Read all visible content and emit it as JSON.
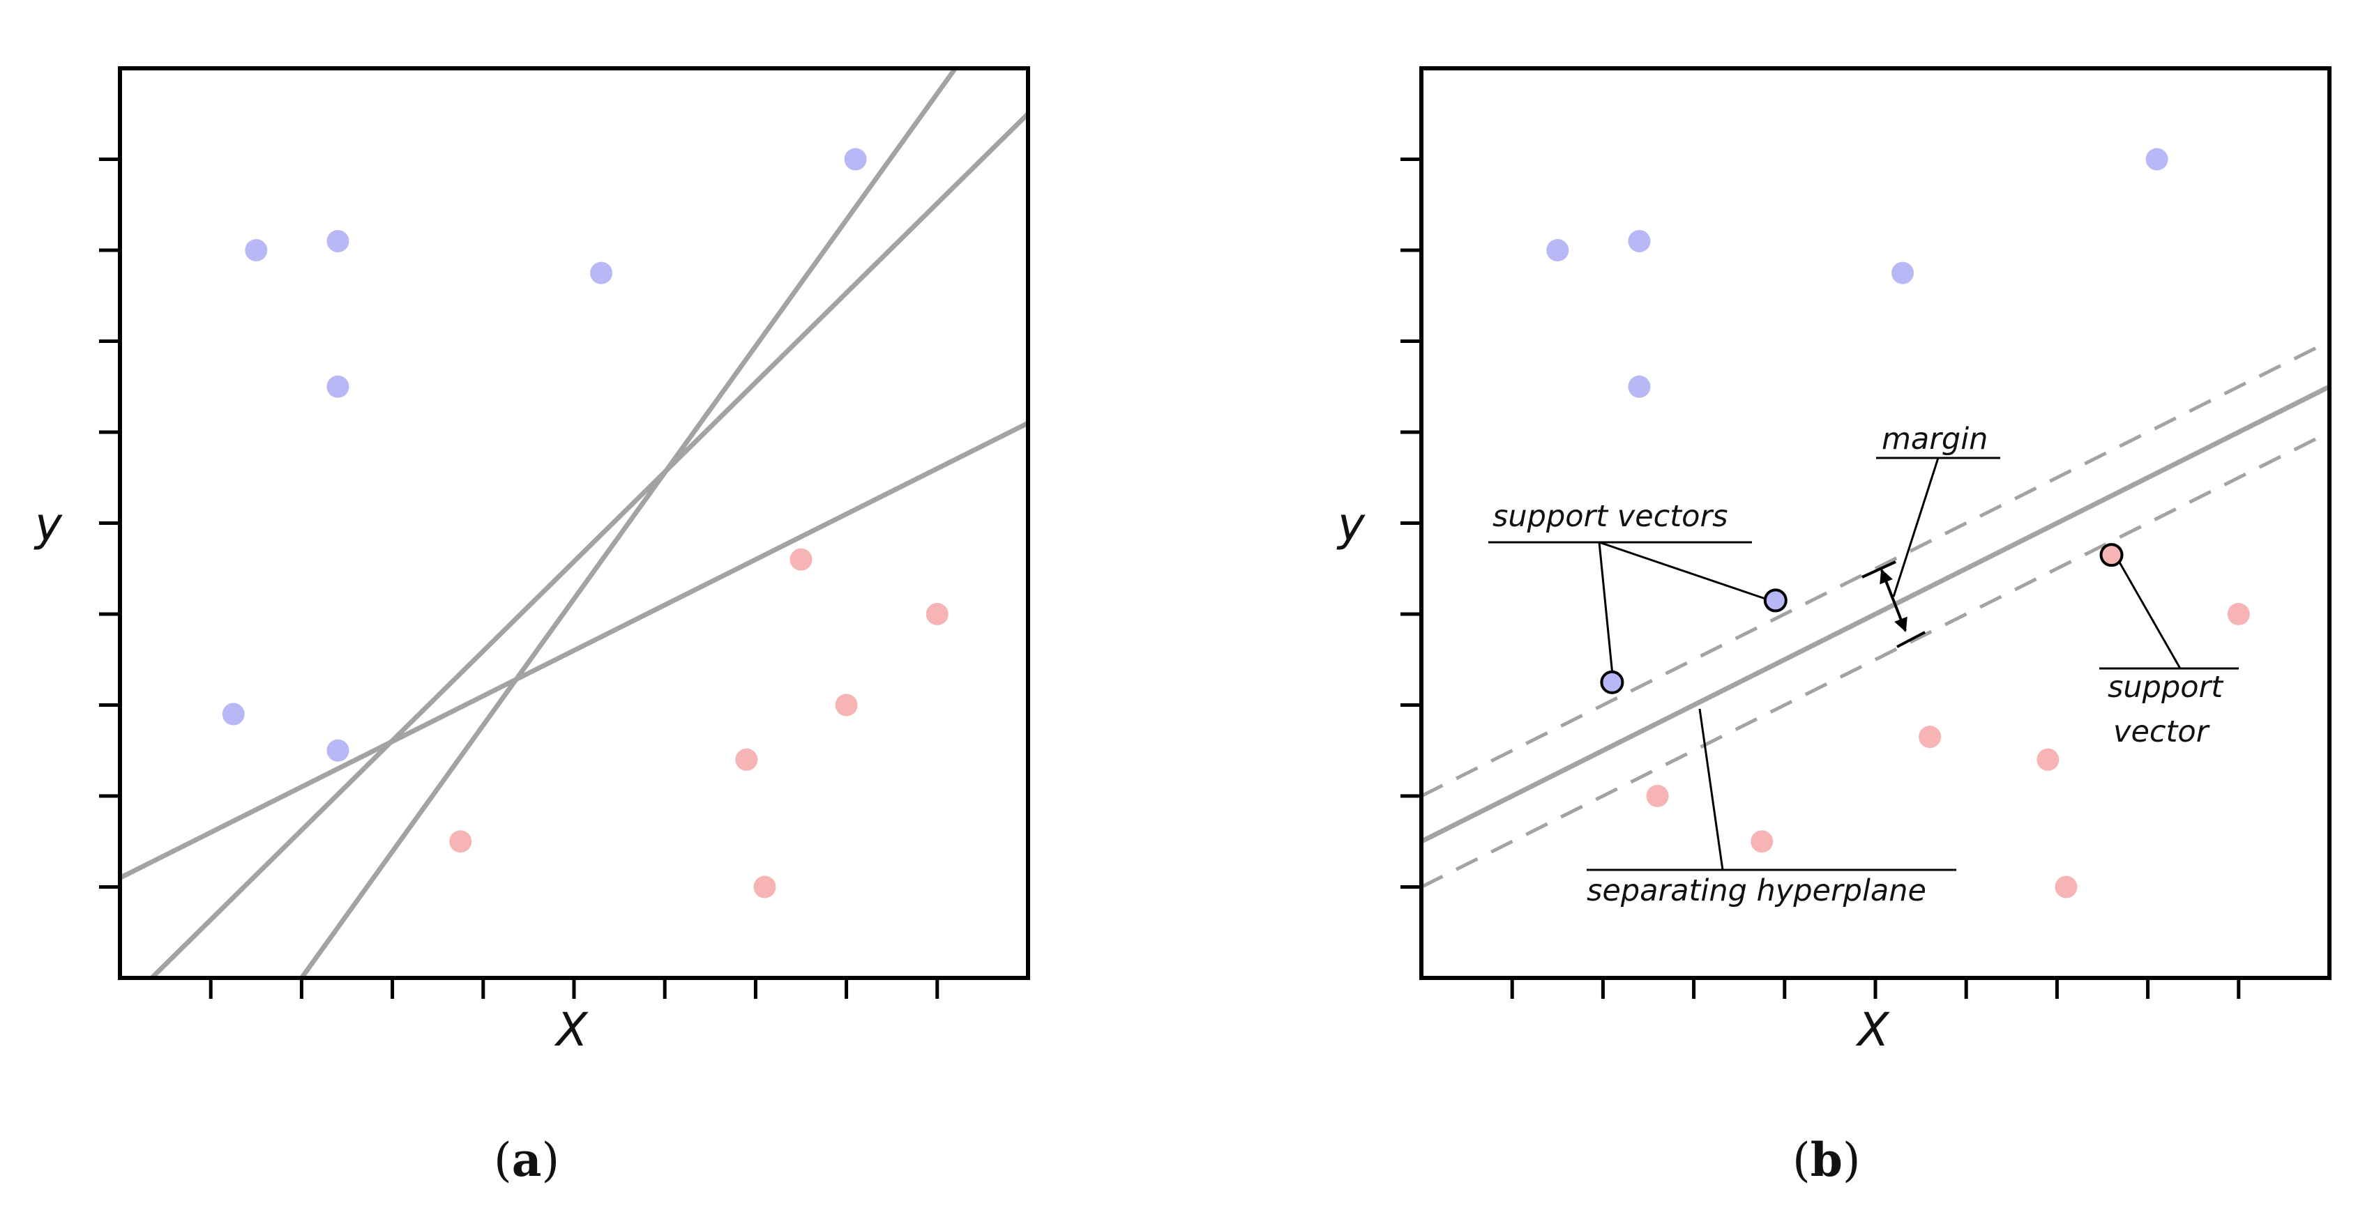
{
  "colors": {
    "blue_point": "#b8b8f6",
    "red_point": "#f7b4b4",
    "line": "#a3a3a3",
    "frame": "#000000"
  },
  "panels": [
    {
      "id": "a",
      "caption_open": "(",
      "caption_letter": "a",
      "caption_close": ")",
      "xlabel": "X",
      "ylabel": "y"
    },
    {
      "id": "b",
      "caption_open": "(",
      "caption_letter": "b",
      "caption_close": ")",
      "xlabel": "X",
      "ylabel": "y",
      "annotations": {
        "margin": "margin",
        "support_vectors": "support vectors",
        "support_vector_line1": "support",
        "support_vector_line2": "vector",
        "separating_hyperplane": "separating hyperplane"
      }
    }
  ],
  "chart_data": [
    {
      "type": "scatter",
      "panel": "a",
      "xlabel": "X",
      "ylabel": "y",
      "xlim": [
        0,
        10
      ],
      "ylim": [
        0,
        10
      ],
      "grid": false,
      "series": [
        {
          "class": "blue",
          "color": "#b8b8f6",
          "points": [
            [
              1.5,
              8.0
            ],
            [
              2.4,
              8.1
            ],
            [
              5.3,
              7.75
            ],
            [
              8.1,
              9.0
            ],
            [
              2.4,
              6.5
            ],
            [
              1.25,
              2.9
            ],
            [
              2.4,
              2.5
            ]
          ]
        },
        {
          "class": "red",
          "color": "#f7b4b4",
          "points": [
            [
              7.5,
              4.6
            ],
            [
              9.0,
              4.0
            ],
            [
              8.0,
              3.0
            ],
            [
              6.9,
              2.4
            ],
            [
              3.75,
              1.5
            ],
            [
              7.1,
              1.0
            ]
          ]
        }
      ],
      "lines": [
        {
          "style": "solid",
          "from": [
            2.0,
            0.0
          ],
          "to": [
            9.2,
            10.0
          ]
        },
        {
          "style": "solid",
          "from": [
            0.35,
            0.0
          ],
          "to": [
            10.0,
            9.5
          ]
        },
        {
          "style": "solid",
          "from": [
            0.0,
            1.1
          ],
          "to": [
            10.0,
            6.1
          ]
        }
      ]
    },
    {
      "type": "scatter",
      "panel": "b",
      "xlabel": "X",
      "ylabel": "y",
      "xlim": [
        0,
        10
      ],
      "ylim": [
        0,
        10
      ],
      "grid": false,
      "series": [
        {
          "class": "blue",
          "color": "#b8b8f6",
          "points": [
            [
              1.5,
              8.0
            ],
            [
              2.4,
              8.1
            ],
            [
              5.3,
              7.75
            ],
            [
              8.1,
              9.0
            ],
            [
              2.4,
              6.5
            ],
            [
              2.1,
              3.25
            ],
            [
              3.9,
              4.15
            ]
          ],
          "support_vectors": [
            [
              2.1,
              3.25
            ],
            [
              3.9,
              4.15
            ]
          ]
        },
        {
          "class": "red",
          "color": "#f7b4b4",
          "points": [
            [
              7.6,
              4.65
            ],
            [
              9.0,
              4.0
            ],
            [
              5.6,
              2.65
            ],
            [
              6.9,
              2.4
            ],
            [
              2.6,
              2.0
            ],
            [
              3.75,
              1.5
            ],
            [
              7.1,
              1.0
            ]
          ],
          "support_vectors": [
            [
              7.6,
              4.65
            ]
          ]
        }
      ],
      "lines": [
        {
          "style": "solid",
          "role": "separating hyperplane",
          "from": [
            0.0,
            1.5
          ],
          "to": [
            10.0,
            6.5
          ]
        },
        {
          "style": "dashed",
          "role": "margin",
          "from": [
            0.0,
            2.0
          ],
          "to": [
            10.0,
            7.0
          ]
        },
        {
          "style": "dashed",
          "role": "margin",
          "from": [
            0.0,
            1.0
          ],
          "to": [
            10.0,
            6.0
          ]
        }
      ]
    }
  ]
}
